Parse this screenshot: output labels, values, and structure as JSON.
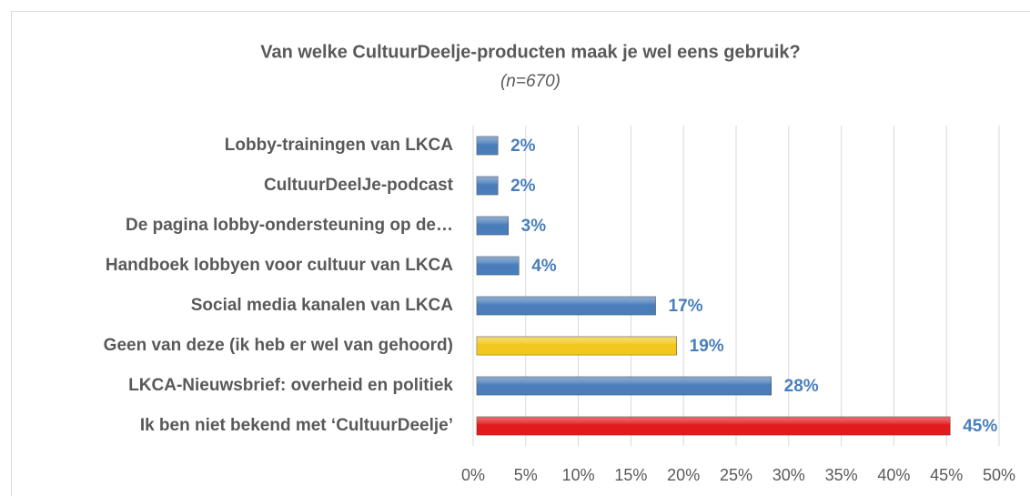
{
  "chart_data": {
    "type": "barh",
    "title": "Van welke CultuurDeelje-producten maak je wel eens gebruik?",
    "subtitle": "(n=670)",
    "categories": [
      "Lobby-trainingen van LKCA",
      "CultuurDeelJe-podcast",
      "De pagina lobby-ondersteuning op de…",
      "Handboek lobbyen voor cultuur van LKCA",
      "Social media kanalen van LKCA",
      "Geen van deze (ik heb er wel van gehoord)",
      "LKCA-Nieuwsbrief: overheid en politiek",
      "Ik ben niet bekend met ‘CultuurDeelje’"
    ],
    "values": [
      2,
      2,
      3,
      4,
      17,
      19,
      28,
      45
    ],
    "value_labels": [
      "2%",
      "2%",
      "3%",
      "4%",
      "17%",
      "19%",
      "28%",
      "45%"
    ],
    "colors": [
      "#4a7ebb",
      "#4a7ebb",
      "#4a7ebb",
      "#4a7ebb",
      "#4a7ebb",
      "#f2c81d",
      "#4a7ebb",
      "#e3191c"
    ],
    "xlim": [
      0,
      50
    ],
    "xticks": [
      {
        "value": 0,
        "label": "0%"
      },
      {
        "value": 5,
        "label": "5%"
      },
      {
        "value": 10,
        "label": "10%"
      },
      {
        "value": 15,
        "label": "15%"
      },
      {
        "value": 20,
        "label": "20%"
      },
      {
        "value": 25,
        "label": "25%"
      },
      {
        "value": 30,
        "label": "30%"
      },
      {
        "value": 35,
        "label": "35%"
      },
      {
        "value": 40,
        "label": "40%"
      },
      {
        "value": 45,
        "label": "45%"
      },
      {
        "value": 50,
        "label": "50%"
      }
    ],
    "grid": true
  }
}
